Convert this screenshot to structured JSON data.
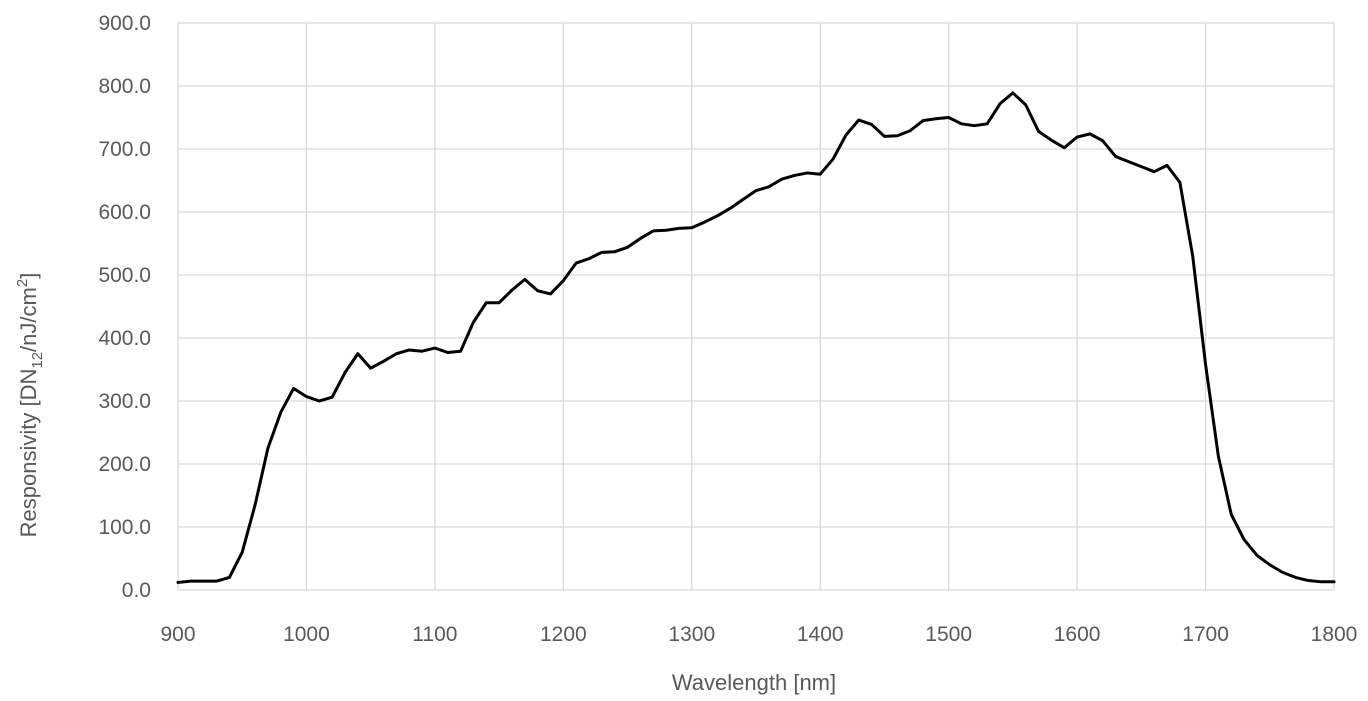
{
  "chart_data": {
    "type": "line",
    "xlabel": "Wavelength [nm]",
    "ylabel": {
      "prefix": "Responsivity [DN",
      "subscript": "12",
      "middle": "/nJ/cm",
      "superscript": "2",
      "suffix": "]"
    },
    "xlim": [
      900,
      1800
    ],
    "ylim": [
      0,
      900
    ],
    "x_ticks": [
      900,
      1000,
      1100,
      1200,
      1300,
      1400,
      1500,
      1600,
      1700,
      1800
    ],
    "y_ticks": [
      0,
      100,
      200,
      300,
      400,
      500,
      600,
      700,
      800,
      900
    ],
    "y_tick_labels": [
      "0.0",
      "100.0",
      "200.0",
      "300.0",
      "400.0",
      "500.0",
      "600.0",
      "700.0",
      "800.0",
      "900.0"
    ],
    "grid": true,
    "legend": "none",
    "line_color": "#000000",
    "grid_color": "#d9d9d9",
    "series": [
      {
        "x": [
          900,
          910,
          920,
          930,
          940,
          950,
          960,
          970,
          980,
          990,
          1000,
          1010,
          1020,
          1030,
          1040,
          1050,
          1060,
          1070,
          1080,
          1090,
          1100,
          1110,
          1120,
          1130,
          1140,
          1150,
          1160,
          1170,
          1180,
          1190,
          1200,
          1210,
          1220,
          1230,
          1240,
          1250,
          1260,
          1270,
          1280,
          1290,
          1300,
          1310,
          1320,
          1330,
          1340,
          1350,
          1360,
          1370,
          1380,
          1390,
          1400,
          1410,
          1420,
          1430,
          1440,
          1450,
          1460,
          1470,
          1480,
          1490,
          1500,
          1510,
          1520,
          1530,
          1540,
          1550,
          1560,
          1570,
          1580,
          1590,
          1600,
          1610,
          1620,
          1630,
          1640,
          1650,
          1660,
          1670,
          1680,
          1690,
          1700,
          1710,
          1720,
          1730,
          1740,
          1750,
          1760,
          1770,
          1780,
          1790,
          1800
        ],
        "y": [
          12,
          14,
          14,
          14,
          20,
          60,
          135,
          225,
          282,
          320,
          307,
          300,
          306,
          345,
          375,
          352,
          363,
          375,
          381,
          379,
          384,
          377,
          379,
          425,
          456,
          456,
          476,
          493,
          475,
          470,
          491,
          519,
          526,
          536,
          537,
          544,
          558,
          570,
          571,
          574,
          575,
          584,
          594,
          606,
          620,
          634,
          640,
          652,
          658,
          662,
          660,
          684,
          722,
          746,
          739,
          720,
          721,
          729,
          745,
          748,
          750,
          740,
          737,
          740,
          772,
          789,
          770,
          728,
          714,
          702,
          719,
          724,
          713,
          688,
          680,
          672,
          664,
          674,
          647,
          530,
          358,
          212,
          120,
          80,
          55,
          40,
          28,
          20,
          15,
          13,
          13
        ]
      }
    ]
  }
}
